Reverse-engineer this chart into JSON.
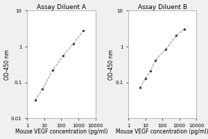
{
  "panel_A": {
    "title": "Assay Diluent A",
    "x": [
      3,
      7.8,
      31,
      125,
      500,
      2000
    ],
    "y": [
      0.033,
      0.065,
      0.22,
      0.55,
      1.2,
      2.8
    ],
    "xlim": [
      1,
      10000
    ],
    "ylim": [
      0.01,
      10
    ],
    "yticks": [
      0.01,
      0.1,
      1,
      10
    ],
    "ytick_labels": [
      "0.01",
      "0.1",
      "1",
      "10"
    ],
    "xticks": [
      1,
      10,
      100,
      1000,
      10000
    ],
    "xtick_labels": [
      "1",
      "10",
      "100",
      "1000",
      "10000"
    ],
    "xlabel": "Mouse VEGF concentration (pg/ml)",
    "ylabel": "OD-450 nm"
  },
  "panel_B": {
    "title": "Assay Diluent B",
    "x": [
      5,
      10,
      20,
      40,
      160,
      640,
      2000
    ],
    "y": [
      0.072,
      0.13,
      0.21,
      0.42,
      0.85,
      2.0,
      3.1
    ],
    "xlim": [
      1,
      10000
    ],
    "ylim": [
      0.01,
      10
    ],
    "yticks": [
      0.1,
      1,
      10
    ],
    "ytick_labels": [
      "0.1",
      "1",
      "10"
    ],
    "xticks": [
      1,
      10,
      100,
      1000,
      10000
    ],
    "xtick_labels": [
      "1",
      "10",
      "100",
      "1000",
      "10000"
    ],
    "xlabel": "Mouse VEGF concentration (pg/ml)",
    "ylabel": "OD-450 nm"
  },
  "line_color": "#888888",
  "marker_color": "#333333",
  "bg_color": "#f0f0f0",
  "plot_bg": "#ffffff",
  "title_fontsize": 6.5,
  "label_fontsize": 5.5,
  "tick_fontsize": 5,
  "fig_width": 3.0,
  "fig_height": 2.0,
  "dpi": 100
}
